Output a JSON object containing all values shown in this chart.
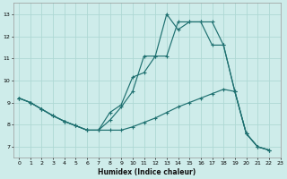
{
  "xlabel": "Humidex (Indice chaleur)",
  "bg_color": "#ceecea",
  "line_color": "#1e7070",
  "grid_color": "#aed8d4",
  "series": [
    {
      "x": [
        0,
        1,
        2,
        3,
        4,
        5,
        6,
        7,
        8,
        9,
        10,
        11,
        12,
        13,
        14,
        15,
        16,
        17,
        18,
        19,
        20,
        21,
        22
      ],
      "y": [
        9.2,
        9.0,
        8.7,
        8.4,
        8.15,
        7.95,
        7.75,
        7.75,
        8.2,
        8.8,
        9.5,
        11.1,
        11.1,
        13.0,
        12.3,
        12.65,
        12.65,
        12.65,
        11.6,
        9.5,
        7.6,
        7.0,
        6.85
      ]
    },
    {
      "x": [
        0,
        1,
        2,
        3,
        4,
        5,
        6,
        7,
        8,
        9,
        10,
        11,
        12,
        13,
        14,
        15,
        16,
        17,
        18,
        19,
        20,
        21,
        22
      ],
      "y": [
        9.2,
        9.0,
        8.7,
        8.4,
        8.15,
        7.95,
        7.75,
        7.75,
        8.55,
        8.9,
        10.15,
        10.35,
        11.1,
        11.1,
        12.65,
        12.65,
        12.65,
        11.6,
        11.6,
        9.5,
        7.6,
        7.0,
        6.85
      ]
    },
    {
      "x": [
        0,
        1,
        2,
        3,
        4,
        5,
        6,
        7,
        8,
        9,
        10,
        11,
        12,
        13,
        14,
        15,
        16,
        17,
        18,
        19,
        20,
        21,
        22
      ],
      "y": [
        9.2,
        9.0,
        8.7,
        8.4,
        8.15,
        7.95,
        7.75,
        7.75,
        7.75,
        7.75,
        7.9,
        8.1,
        8.3,
        8.55,
        8.8,
        9.0,
        9.2,
        9.4,
        9.6,
        9.5,
        7.6,
        7.0,
        6.85
      ]
    }
  ],
  "ylim": [
    6.5,
    13.5
  ],
  "xlim": [
    -0.5,
    23.0
  ],
  "yticks": [
    7,
    8,
    9,
    10,
    11,
    12,
    13
  ],
  "xticks": [
    0,
    1,
    2,
    3,
    4,
    5,
    6,
    7,
    8,
    9,
    10,
    11,
    12,
    13,
    14,
    15,
    16,
    17,
    18,
    19,
    20,
    21,
    22,
    23
  ]
}
